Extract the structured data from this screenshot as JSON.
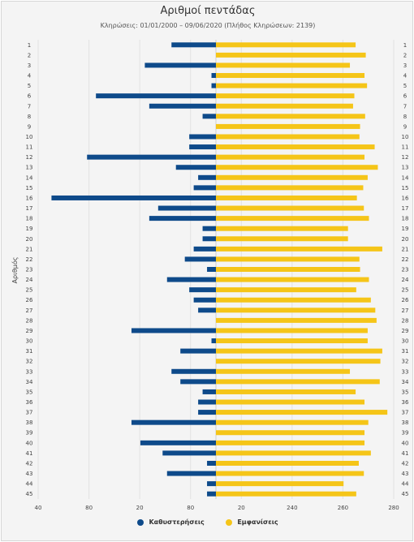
{
  "chart_data": {
    "type": "bar",
    "orientation": "horizontal",
    "title": "Αριθμοί πεντάδας",
    "subtitle": "Κληρώσεις: 01/01/2000 – 09/06/2020 (Πλήθος Κληρώσεων: 2139)",
    "ylabel": "Αριθμός",
    "xlabel": "",
    "categories": [
      "1",
      "2",
      "3",
      "4",
      "5",
      "6",
      "7",
      "8",
      "9",
      "10",
      "11",
      "12",
      "13",
      "14",
      "15",
      "16",
      "17",
      "18",
      "19",
      "20",
      "21",
      "22",
      "23",
      "24",
      "25",
      "26",
      "27",
      "28",
      "29",
      "30",
      "31",
      "32",
      "33",
      "34",
      "35",
      "36",
      "37",
      "38",
      "39",
      "40",
      "41",
      "42",
      "43",
      "44",
      "45"
    ],
    "x_ticks": [
      "40",
      "80",
      "20",
      "80",
      "20",
      "240",
      "260",
      "280"
    ],
    "legend_position": "bottom",
    "grid": true,
    "series": [
      {
        "name": "Καθυστερήσεις",
        "color": "#0e4a8a",
        "direction": "left",
        "values": [
          10,
          0,
          16,
          1,
          1,
          27,
          15,
          3,
          0,
          6,
          6,
          29,
          9,
          4,
          5,
          37,
          13,
          15,
          3,
          3,
          5,
          7,
          2,
          11,
          6,
          5,
          4,
          0,
          19,
          1,
          8,
          0,
          10,
          8,
          3,
          4,
          4,
          19,
          0,
          17,
          12,
          2,
          11,
          2,
          2
        ]
      },
      {
        "name": "Εμφανίσεις",
        "color": "#f5c518",
        "direction": "right",
        "values": [
          220,
          236,
          211,
          234,
          238,
          218,
          216,
          235,
          227,
          226,
          250,
          234,
          255,
          239,
          232,
          222,
          233,
          241,
          208,
          208,
          262,
          226,
          227,
          241,
          221,
          244,
          251,
          253,
          239,
          239,
          262,
          259,
          211,
          258,
          220,
          234,
          270,
          240,
          234,
          234,
          244,
          225,
          233,
          201,
          221
        ]
      }
    ]
  }
}
